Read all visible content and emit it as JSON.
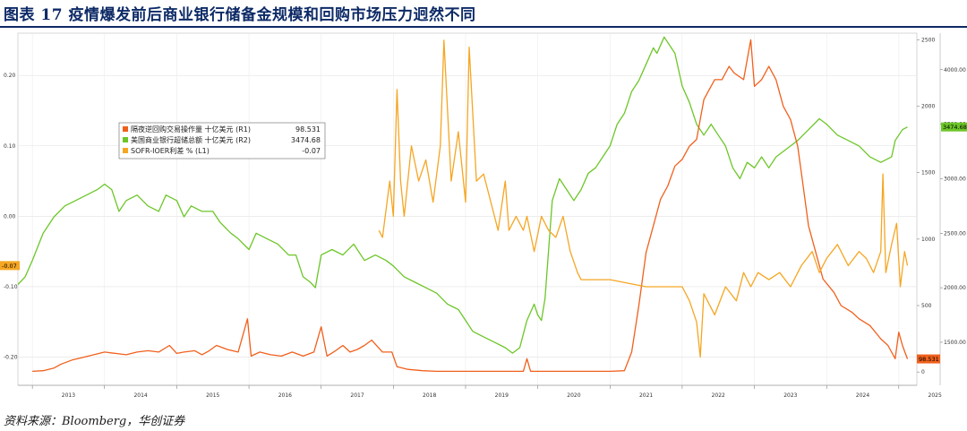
{
  "figure": {
    "title": "图表 17  疫情爆发前后商业银行储备金规模和回购市场压力迥然不同",
    "source": "资料来源：Bloomberg，华创证券"
  },
  "chart_data": {
    "type": "line",
    "x_ticks": [
      "2013",
      "2014",
      "2015",
      "2016",
      "2017",
      "2018",
      "2019",
      "2020",
      "2021",
      "2022",
      "2023",
      "2024",
      "2025"
    ],
    "x_range": [
      2012.8,
      2025.25
    ],
    "axes": {
      "L1": {
        "ylim": [
          -0.24,
          0.26
        ],
        "ticks": [
          "0.20",
          "0.10",
          "0.00",
          "-0.10",
          "-0.20"
        ],
        "tick_values": [
          0.2,
          0.1,
          0.0,
          -0.1,
          -0.2
        ]
      },
      "R1": {
        "ylim": [
          -100,
          2550
        ],
        "ticks": [
          "2500",
          "2000",
          "1500",
          "1000",
          "500",
          "0"
        ],
        "tick_values": [
          2500,
          2000,
          1500,
          1000,
          500,
          0
        ]
      },
      "R2": {
        "ylim": [
          1105,
          4335
        ],
        "ticks": [
          "4000.00",
          "3500.00",
          "3000.00",
          "2500.00",
          "2000.00",
          "1500.00"
        ],
        "tick_values": [
          4000,
          3500,
          3000,
          2500,
          2000,
          1500
        ]
      }
    },
    "grid": true,
    "legend": {
      "placement": "top-left",
      "entries": [
        {
          "label": "隔夜逆回购交易操作量 十亿美元 (R1)",
          "value": "98.531"
        },
        {
          "label": "美国商业银行超储总额 十亿美元 (R2)",
          "value": "3474.68"
        },
        {
          "label": "SOFR-IOER利差 % (L1)",
          "value": "-0.07"
        }
      ]
    },
    "last_value_tags": {
      "L1": "-0.07",
      "R1": "98.531",
      "R2": "3474.68"
    },
    "series": [
      {
        "label": "隔夜逆回购交易操作量 十亿美元 (R1)",
        "axis": "R1",
        "color": "#f0601c",
        "points": [
          [
            2013.0,
            5
          ],
          [
            2013.15,
            10
          ],
          [
            2013.3,
            30
          ],
          [
            2013.4,
            60
          ],
          [
            2013.55,
            90
          ],
          [
            2013.7,
            110
          ],
          [
            2013.85,
            130
          ],
          [
            2014.0,
            150
          ],
          [
            2014.15,
            140
          ],
          [
            2014.3,
            130
          ],
          [
            2014.45,
            150
          ],
          [
            2014.6,
            160
          ],
          [
            2014.75,
            150
          ],
          [
            2014.9,
            200
          ],
          [
            2015.0,
            140
          ],
          [
            2015.1,
            150
          ],
          [
            2015.25,
            160
          ],
          [
            2015.35,
            130
          ],
          [
            2015.45,
            160
          ],
          [
            2015.55,
            200
          ],
          [
            2015.7,
            170
          ],
          [
            2015.85,
            150
          ],
          [
            2015.98,
            400
          ],
          [
            2016.03,
            120
          ],
          [
            2016.15,
            150
          ],
          [
            2016.3,
            130
          ],
          [
            2016.45,
            120
          ],
          [
            2016.6,
            150
          ],
          [
            2016.75,
            120
          ],
          [
            2016.9,
            150
          ],
          [
            2017.0,
            340
          ],
          [
            2017.08,
            120
          ],
          [
            2017.2,
            160
          ],
          [
            2017.3,
            200
          ],
          [
            2017.4,
            150
          ],
          [
            2017.5,
            170
          ],
          [
            2017.6,
            200
          ],
          [
            2017.7,
            240
          ],
          [
            2017.85,
            150
          ],
          [
            2017.98,
            150
          ],
          [
            2018.05,
            40
          ],
          [
            2018.2,
            20
          ],
          [
            2018.4,
            10
          ],
          [
            2018.6,
            5
          ],
          [
            2018.8,
            5
          ],
          [
            2019.0,
            5
          ],
          [
            2019.2,
            5
          ],
          [
            2019.4,
            5
          ],
          [
            2019.6,
            5
          ],
          [
            2019.8,
            5
          ],
          [
            2019.85,
            100
          ],
          [
            2019.9,
            5
          ],
          [
            2020.2,
            5
          ],
          [
            2020.6,
            5
          ],
          [
            2021.0,
            5
          ],
          [
            2021.2,
            10
          ],
          [
            2021.3,
            150
          ],
          [
            2021.4,
            500
          ],
          [
            2021.5,
            900
          ],
          [
            2021.6,
            1100
          ],
          [
            2021.7,
            1300
          ],
          [
            2021.8,
            1400
          ],
          [
            2021.9,
            1550
          ],
          [
            2022.0,
            1600
          ],
          [
            2022.1,
            1700
          ],
          [
            2022.2,
            1750
          ],
          [
            2022.3,
            2050
          ],
          [
            2022.35,
            2100
          ],
          [
            2022.45,
            2200
          ],
          [
            2022.55,
            2200
          ],
          [
            2022.65,
            2300
          ],
          [
            2022.72,
            2250
          ],
          [
            2022.85,
            2200
          ],
          [
            2022.95,
            2500
          ],
          [
            2023.0,
            2150
          ],
          [
            2023.1,
            2200
          ],
          [
            2023.2,
            2300
          ],
          [
            2023.3,
            2200
          ],
          [
            2023.4,
            2000
          ],
          [
            2023.5,
            1900
          ],
          [
            2023.6,
            1700
          ],
          [
            2023.65,
            1500
          ],
          [
            2023.75,
            1100
          ],
          [
            2023.85,
            900
          ],
          [
            2023.95,
            700
          ],
          [
            2024.1,
            600
          ],
          [
            2024.2,
            500
          ],
          [
            2024.35,
            450
          ],
          [
            2024.45,
            400
          ],
          [
            2024.6,
            350
          ],
          [
            2024.75,
            250
          ],
          [
            2024.85,
            200
          ],
          [
            2024.95,
            100
          ],
          [
            2025.0,
            300
          ],
          [
            2025.05,
            200
          ],
          [
            2025.12,
            98.531
          ]
        ]
      },
      {
        "label": "美国商业银行超储总额 十亿美元 (R2)",
        "axis": "R2",
        "color": "#6cc628",
        "points": [
          [
            2012.8,
            2030
          ],
          [
            2012.9,
            2100
          ],
          [
            2013.0,
            2250
          ],
          [
            2013.15,
            2500
          ],
          [
            2013.3,
            2650
          ],
          [
            2013.45,
            2750
          ],
          [
            2013.6,
            2800
          ],
          [
            2013.75,
            2850
          ],
          [
            2013.9,
            2900
          ],
          [
            2014.0,
            2950
          ],
          [
            2014.1,
            2900
          ],
          [
            2014.2,
            2700
          ],
          [
            2014.3,
            2800
          ],
          [
            2014.45,
            2850
          ],
          [
            2014.6,
            2750
          ],
          [
            2014.75,
            2700
          ],
          [
            2014.85,
            2850
          ],
          [
            2015.0,
            2800
          ],
          [
            2015.1,
            2650
          ],
          [
            2015.2,
            2750
          ],
          [
            2015.35,
            2700
          ],
          [
            2015.5,
            2700
          ],
          [
            2015.6,
            2600
          ],
          [
            2015.75,
            2500
          ],
          [
            2015.85,
            2450
          ],
          [
            2016.0,
            2350
          ],
          [
            2016.1,
            2500
          ],
          [
            2016.25,
            2450
          ],
          [
            2016.4,
            2400
          ],
          [
            2016.55,
            2300
          ],
          [
            2016.65,
            2300
          ],
          [
            2016.75,
            2100
          ],
          [
            2016.85,
            2050
          ],
          [
            2016.92,
            2000
          ],
          [
            2017.0,
            2300
          ],
          [
            2017.15,
            2350
          ],
          [
            2017.3,
            2300
          ],
          [
            2017.45,
            2400
          ],
          [
            2017.6,
            2250
          ],
          [
            2017.75,
            2300
          ],
          [
            2017.9,
            2250
          ],
          [
            2018.0,
            2200
          ],
          [
            2018.15,
            2100
          ],
          [
            2018.3,
            2050
          ],
          [
            2018.45,
            2000
          ],
          [
            2018.6,
            1950
          ],
          [
            2018.75,
            1850
          ],
          [
            2018.9,
            1800
          ],
          [
            2019.0,
            1700
          ],
          [
            2019.1,
            1600
          ],
          [
            2019.25,
            1550
          ],
          [
            2019.4,
            1500
          ],
          [
            2019.55,
            1450
          ],
          [
            2019.65,
            1400
          ],
          [
            2019.75,
            1450
          ],
          [
            2019.85,
            1700
          ],
          [
            2019.95,
            1850
          ],
          [
            2020.0,
            1750
          ],
          [
            2020.05,
            1700
          ],
          [
            2020.1,
            1900
          ],
          [
            2020.2,
            2800
          ],
          [
            2020.3,
            3000
          ],
          [
            2020.4,
            2900
          ],
          [
            2020.5,
            2800
          ],
          [
            2020.6,
            2900
          ],
          [
            2020.7,
            3050
          ],
          [
            2020.8,
            3100
          ],
          [
            2020.9,
            3200
          ],
          [
            2021.0,
            3300
          ],
          [
            2021.1,
            3500
          ],
          [
            2021.2,
            3600
          ],
          [
            2021.3,
            3800
          ],
          [
            2021.4,
            3900
          ],
          [
            2021.5,
            4050
          ],
          [
            2021.6,
            4200
          ],
          [
            2021.65,
            4150
          ],
          [
            2021.75,
            4300
          ],
          [
            2021.9,
            4150
          ],
          [
            2022.0,
            3850
          ],
          [
            2022.1,
            3700
          ],
          [
            2022.2,
            3500
          ],
          [
            2022.3,
            3400
          ],
          [
            2022.4,
            3500
          ],
          [
            2022.5,
            3400
          ],
          [
            2022.6,
            3300
          ],
          [
            2022.7,
            3100
          ],
          [
            2022.8,
            3000
          ],
          [
            2022.9,
            3150
          ],
          [
            2023.0,
            3100
          ],
          [
            2023.1,
            3200
          ],
          [
            2023.2,
            3100
          ],
          [
            2023.3,
            3200
          ],
          [
            2023.4,
            3250
          ],
          [
            2023.5,
            3300
          ],
          [
            2023.6,
            3350
          ],
          [
            2023.75,
            3450
          ],
          [
            2023.9,
            3550
          ],
          [
            2024.0,
            3500
          ],
          [
            2024.15,
            3400
          ],
          [
            2024.3,
            3350
          ],
          [
            2024.45,
            3300
          ],
          [
            2024.6,
            3200
          ],
          [
            2024.75,
            3150
          ],
          [
            2024.9,
            3200
          ],
          [
            2024.95,
            3350
          ],
          [
            2025.05,
            3450
          ],
          [
            2025.12,
            3474.68
          ]
        ]
      },
      {
        "label": "SOFR-IOER利差 % (L1)",
        "axis": "L1",
        "color": "#f5a623",
        "points": [
          [
            2017.8,
            -0.02
          ],
          [
            2017.85,
            -0.03
          ],
          [
            2017.95,
            0.05
          ],
          [
            2018.0,
            0.0
          ],
          [
            2018.05,
            0.18
          ],
          [
            2018.1,
            0.05
          ],
          [
            2018.15,
            0.0
          ],
          [
            2018.25,
            0.1
          ],
          [
            2018.35,
            0.05
          ],
          [
            2018.45,
            0.08
          ],
          [
            2018.55,
            0.02
          ],
          [
            2018.65,
            0.1
          ],
          [
            2018.7,
            0.25
          ],
          [
            2018.8,
            0.05
          ],
          [
            2018.9,
            0.12
          ],
          [
            2019.0,
            0.02
          ],
          [
            2019.05,
            0.24
          ],
          [
            2019.15,
            0.05
          ],
          [
            2019.25,
            0.06
          ],
          [
            2019.35,
            0.02
          ],
          [
            2019.45,
            -0.02
          ],
          [
            2019.55,
            0.05
          ],
          [
            2019.6,
            -0.02
          ],
          [
            2019.7,
            0.0
          ],
          [
            2019.8,
            -0.02
          ],
          [
            2019.85,
            0.0
          ],
          [
            2019.95,
            -0.05
          ],
          [
            2020.05,
            0.0
          ],
          [
            2020.15,
            -0.02
          ],
          [
            2020.25,
            -0.03
          ],
          [
            2020.35,
            0.0
          ],
          [
            2020.45,
            -0.05
          ],
          [
            2020.55,
            -0.08
          ],
          [
            2020.6,
            -0.09
          ],
          [
            2020.7,
            -0.09
          ],
          [
            2021.0,
            -0.09
          ],
          [
            2021.5,
            -0.1
          ],
          [
            2022.0,
            -0.1
          ],
          [
            2022.1,
            -0.12
          ],
          [
            2022.2,
            -0.15
          ],
          [
            2022.25,
            -0.2
          ],
          [
            2022.3,
            -0.11
          ],
          [
            2022.45,
            -0.14
          ],
          [
            2022.6,
            -0.1
          ],
          [
            2022.75,
            -0.12
          ],
          [
            2022.85,
            -0.08
          ],
          [
            2022.95,
            -0.1
          ],
          [
            2023.05,
            -0.08
          ],
          [
            2023.2,
            -0.09
          ],
          [
            2023.35,
            -0.08
          ],
          [
            2023.5,
            -0.1
          ],
          [
            2023.65,
            -0.07
          ],
          [
            2023.8,
            -0.05
          ],
          [
            2023.9,
            -0.08
          ],
          [
            2024.0,
            -0.06
          ],
          [
            2024.15,
            -0.04
          ],
          [
            2024.3,
            -0.07
          ],
          [
            2024.45,
            -0.05
          ],
          [
            2024.55,
            -0.06
          ],
          [
            2024.65,
            -0.08
          ],
          [
            2024.75,
            -0.05
          ],
          [
            2024.78,
            0.06
          ],
          [
            2024.82,
            -0.08
          ],
          [
            2024.9,
            -0.04
          ],
          [
            2024.97,
            -0.01
          ],
          [
            2025.02,
            -0.1
          ],
          [
            2025.08,
            -0.05
          ],
          [
            2025.12,
            -0.07
          ]
        ]
      }
    ]
  }
}
